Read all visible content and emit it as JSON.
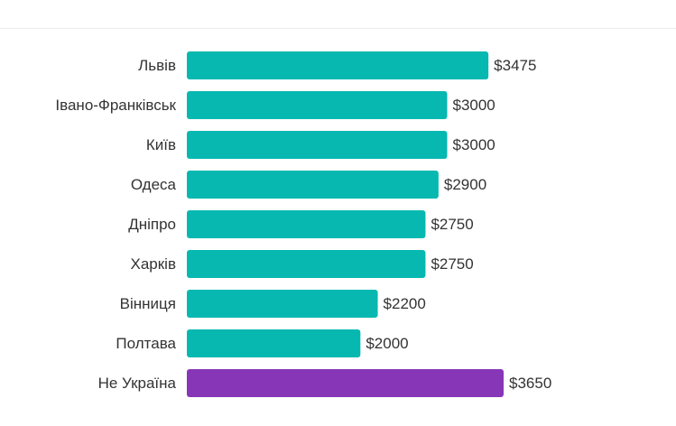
{
  "chart_data": {
    "type": "bar",
    "orientation": "horizontal",
    "categories": [
      "Львів",
      "Івано-Франківськ",
      "Київ",
      "Одеса",
      "Дніпро",
      "Харків",
      "Вінниця",
      "Полтава",
      "Не Україна"
    ],
    "values": [
      3475,
      3000,
      3000,
      2900,
      2750,
      2750,
      2200,
      2000,
      3650
    ],
    "value_labels": [
      "$3475",
      "$3000",
      "$3000",
      "$2900",
      "$2750",
      "$2750",
      "$2200",
      "$2000",
      "$3650"
    ],
    "title": "",
    "xlabel": "",
    "ylabel": "",
    "xlim": [
      0,
      3650
    ],
    "grid": false,
    "legend": "none",
    "colors": {
      "default": "#06b8b0",
      "highlight": "#8736b8",
      "highlight_category": "Не Україна"
    }
  }
}
